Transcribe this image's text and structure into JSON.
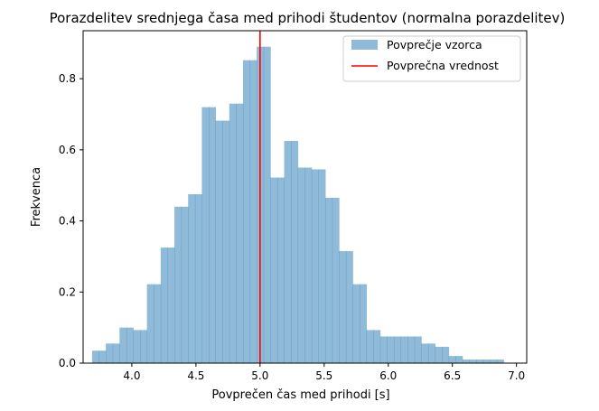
{
  "chart_data": {
    "type": "bar",
    "title": "Porazdelitev srednjega časa med prihodi študentov (normalna porazdelitev)",
    "xlabel": "Povprečen čas med prihodi [s]",
    "ylabel": "Frekvenca",
    "xlim": [
      3.62,
      7.08
    ],
    "ylim": [
      0,
      0.935
    ],
    "xticks": [
      "4.0",
      "4.5",
      "5.0",
      "5.5",
      "6.0",
      "6.5",
      "7.0"
    ],
    "xtick_values": [
      4.0,
      4.5,
      5.0,
      5.5,
      6.0,
      6.5,
      7.0
    ],
    "yticks": [
      "0.0",
      "0.2",
      "0.4",
      "0.6",
      "0.8"
    ],
    "ytick_values": [
      0.0,
      0.2,
      0.4,
      0.6,
      0.8
    ],
    "grid": false,
    "legend_position": "top-right",
    "series": [
      {
        "name": "Povprečje vzorca",
        "kind": "histogram",
        "color": "#1f77b4",
        "alpha": 0.5,
        "bin_edges": [
          3.69,
          3.744,
          3.797,
          3.851,
          3.904,
          3.958,
          4.011,
          4.065,
          4.118,
          4.172,
          4.225,
          4.279,
          4.332,
          4.386,
          4.439,
          4.493,
          4.546,
          4.6,
          4.653,
          4.707,
          4.76,
          4.814,
          4.867,
          4.921,
          4.974,
          5.028,
          5.081,
          5.135,
          5.188,
          5.242,
          5.295,
          5.349,
          5.402,
          5.456,
          5.509,
          5.563,
          5.616,
          5.67,
          5.723,
          5.777,
          5.83,
          5.884,
          5.937,
          5.991,
          6.044,
          6.098,
          6.151,
          6.205,
          6.258,
          6.312,
          6.365,
          6.419,
          6.472,
          6.526,
          6.579,
          6.633,
          6.686,
          6.74,
          6.793,
          6.847,
          6.9
        ],
        "heights": [
          0.035,
          0.035,
          0.055,
          0.055,
          0.1,
          0.1,
          0.093,
          0.093,
          0.222,
          0.222,
          0.325,
          0.325,
          0.44,
          0.44,
          0.475,
          0.475,
          0.72,
          0.72,
          0.682,
          0.682,
          0.73,
          0.73,
          0.852,
          0.852,
          0.89,
          0.89,
          0.522,
          0.522,
          0.625,
          0.625,
          0.55,
          0.55,
          0.545,
          0.545,
          0.465,
          0.465,
          0.315,
          0.315,
          0.222,
          0.222,
          0.093,
          0.093,
          0.075,
          0.075,
          0.075,
          0.075,
          0.075,
          0.075,
          0.055,
          0.055,
          0.046,
          0.046,
          0.02,
          0.02,
          0.01,
          0.01,
          0.01,
          0.01,
          0.01,
          0.01
        ]
      },
      {
        "name": "Povprečna vrednost",
        "kind": "vline",
        "color": "#ff0000",
        "x": 5.0
      }
    ]
  }
}
